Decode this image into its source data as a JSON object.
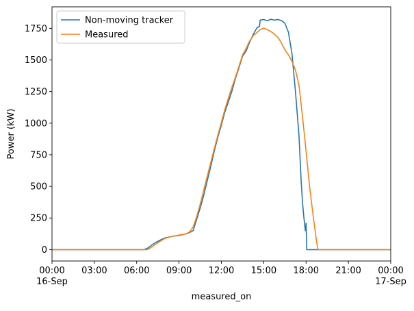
{
  "chart_data": {
    "type": "line",
    "title": "",
    "xlabel": "measured_on",
    "ylabel": "Power (kW)",
    "x_unit": "hours since 16-Sep 00:00",
    "xlim": [
      0,
      24
    ],
    "ylim": [
      -90,
      1920
    ],
    "x_ticks": [
      {
        "x": 0,
        "label": "00:00",
        "sublabel": "16-Sep"
      },
      {
        "x": 3,
        "label": "03:00",
        "sublabel": ""
      },
      {
        "x": 6,
        "label": "06:00",
        "sublabel": ""
      },
      {
        "x": 9,
        "label": "09:00",
        "sublabel": ""
      },
      {
        "x": 12,
        "label": "12:00",
        "sublabel": ""
      },
      {
        "x": 15,
        "label": "15:00",
        "sublabel": ""
      },
      {
        "x": 18,
        "label": "18:00",
        "sublabel": ""
      },
      {
        "x": 21,
        "label": "21:00",
        "sublabel": ""
      },
      {
        "x": 24,
        "label": "00:00",
        "sublabel": "17-Sep"
      }
    ],
    "y_ticks": [
      0,
      250,
      500,
      750,
      1000,
      1250,
      1500,
      1750
    ],
    "grid": false,
    "legend_position": "upper-left",
    "series": [
      {
        "name": "Non-moving tracker",
        "color": "#1f77b4",
        "points": [
          [
            0,
            0
          ],
          [
            6.5,
            0
          ],
          [
            6.75,
            10
          ],
          [
            7.0,
            30
          ],
          [
            7.25,
            50
          ],
          [
            7.5,
            65
          ],
          [
            7.75,
            80
          ],
          [
            8.0,
            92
          ],
          [
            8.5,
            105
          ],
          [
            9.0,
            112
          ],
          [
            9.5,
            125
          ],
          [
            9.75,
            135
          ],
          [
            10.0,
            150
          ],
          [
            10.25,
            240
          ],
          [
            10.5,
            330
          ],
          [
            10.75,
            430
          ],
          [
            11.0,
            545
          ],
          [
            11.25,
            660
          ],
          [
            11.5,
            780
          ],
          [
            11.75,
            890
          ],
          [
            12.0,
            985
          ],
          [
            12.25,
            1090
          ],
          [
            12.5,
            1170
          ],
          [
            12.75,
            1255
          ],
          [
            13.0,
            1355
          ],
          [
            13.25,
            1440
          ],
          [
            13.5,
            1530
          ],
          [
            13.75,
            1570
          ],
          [
            14.0,
            1640
          ],
          [
            14.25,
            1700
          ],
          [
            14.5,
            1750
          ],
          [
            14.6,
            1760
          ],
          [
            14.7,
            1765
          ],
          [
            14.75,
            1815
          ],
          [
            15.0,
            1820
          ],
          [
            15.25,
            1810
          ],
          [
            15.5,
            1822
          ],
          [
            15.75,
            1815
          ],
          [
            16.0,
            1820
          ],
          [
            16.25,
            1812
          ],
          [
            16.5,
            1790
          ],
          [
            16.75,
            1720
          ],
          [
            17.0,
            1550
          ],
          [
            17.25,
            1250
          ],
          [
            17.5,
            900
          ],
          [
            17.65,
            550
          ],
          [
            17.75,
            370
          ],
          [
            17.85,
            250
          ],
          [
            17.95,
            150
          ],
          [
            18.0,
            210
          ],
          [
            18.05,
            0
          ],
          [
            24,
            0
          ]
        ]
      },
      {
        "name": "Measured",
        "color": "#ff7f0e",
        "points": [
          [
            0,
            0
          ],
          [
            6.75,
            0
          ],
          [
            7.0,
            15
          ],
          [
            7.25,
            35
          ],
          [
            7.5,
            55
          ],
          [
            7.75,
            72
          ],
          [
            8.0,
            88
          ],
          [
            8.5,
            105
          ],
          [
            9.0,
            115
          ],
          [
            9.5,
            125
          ],
          [
            9.75,
            140
          ],
          [
            10.0,
            180
          ],
          [
            10.25,
            260
          ],
          [
            10.5,
            360
          ],
          [
            10.75,
            470
          ],
          [
            11.0,
            580
          ],
          [
            11.25,
            690
          ],
          [
            11.5,
            800
          ],
          [
            11.75,
            905
          ],
          [
            12.0,
            1005
          ],
          [
            12.25,
            1110
          ],
          [
            12.5,
            1200
          ],
          [
            12.75,
            1285
          ],
          [
            13.0,
            1365
          ],
          [
            13.25,
            1450
          ],
          [
            13.5,
            1540
          ],
          [
            13.75,
            1590
          ],
          [
            14.0,
            1650
          ],
          [
            14.25,
            1690
          ],
          [
            14.5,
            1715
          ],
          [
            14.75,
            1740
          ],
          [
            15.0,
            1752
          ],
          [
            15.25,
            1740
          ],
          [
            15.5,
            1725
          ],
          [
            15.75,
            1705
          ],
          [
            16.0,
            1680
          ],
          [
            16.25,
            1635
          ],
          [
            16.5,
            1580
          ],
          [
            16.75,
            1540
          ],
          [
            17.0,
            1490
          ],
          [
            17.25,
            1420
          ],
          [
            17.5,
            1300
          ],
          [
            17.75,
            1050
          ],
          [
            18.0,
            780
          ],
          [
            18.25,
            500
          ],
          [
            18.5,
            270
          ],
          [
            18.75,
            60
          ],
          [
            18.85,
            0
          ],
          [
            24,
            0
          ]
        ]
      }
    ]
  }
}
